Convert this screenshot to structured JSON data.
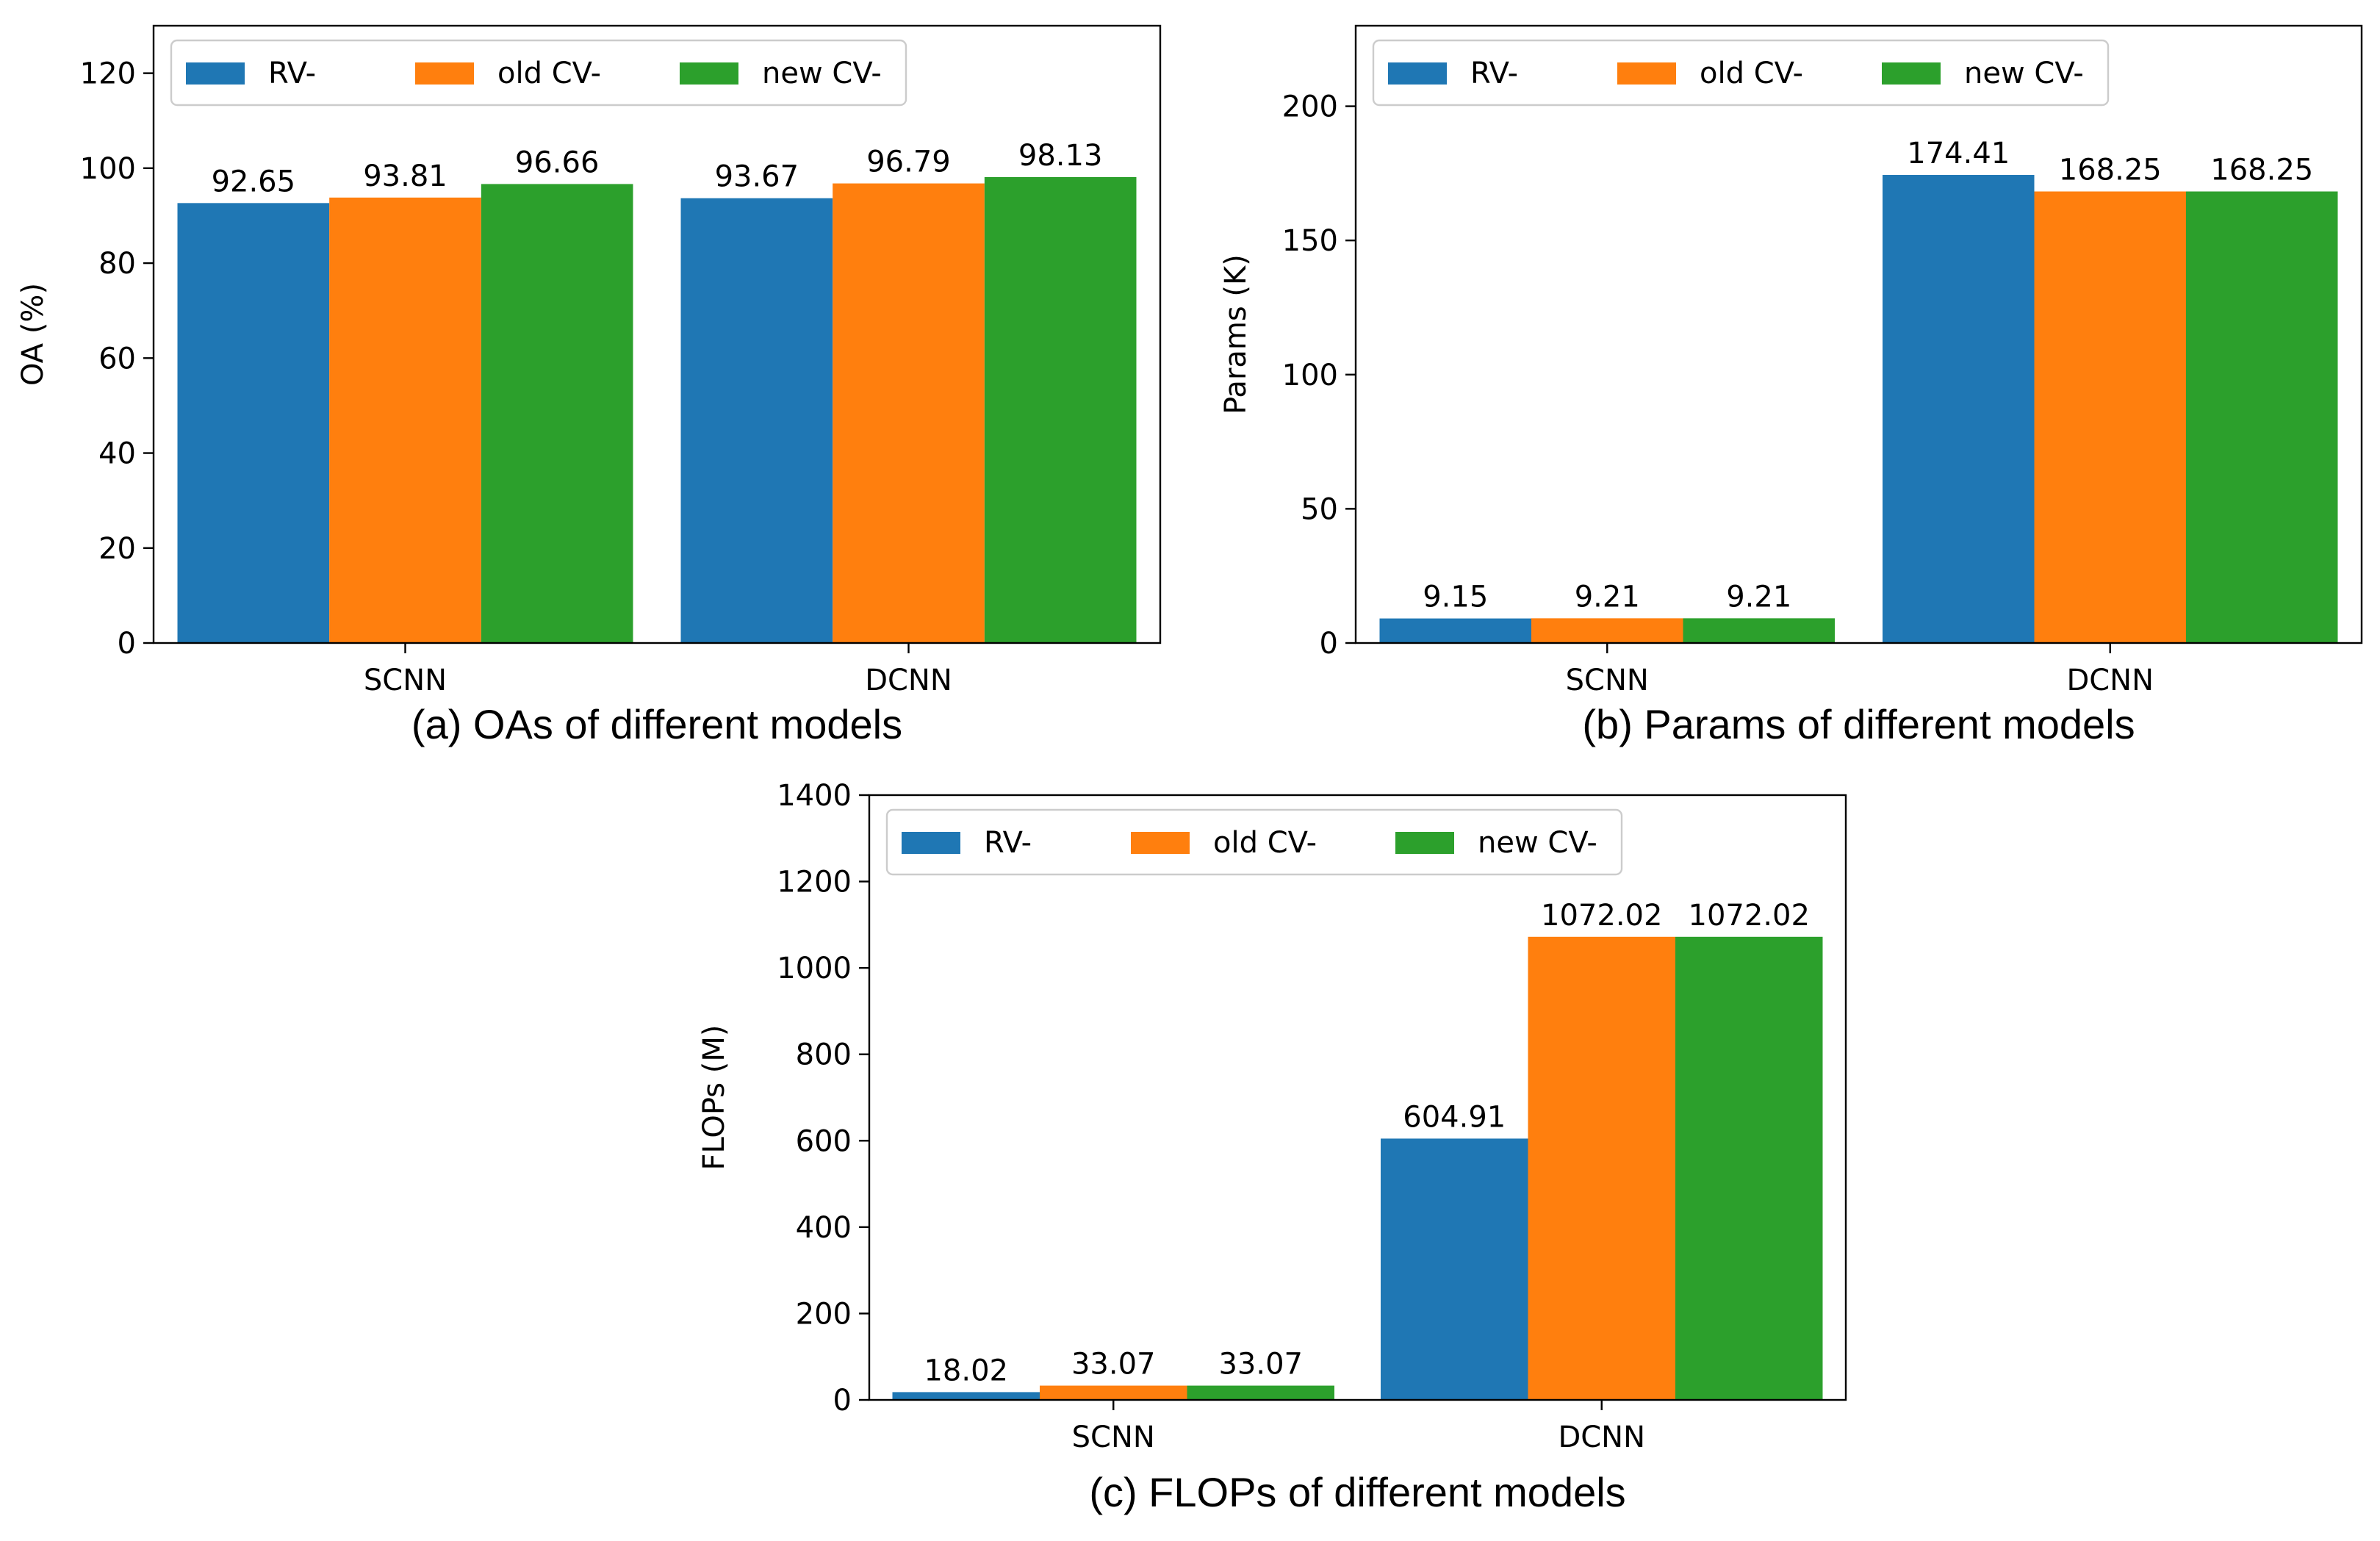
{
  "colors": {
    "rv": "#1f77b4",
    "old_cv": "#ff7f0e",
    "new_cv": "#2ca02c",
    "axis": "#000000",
    "legend_border": "#cccccc"
  },
  "chart_data": [
    {
      "type": "bar",
      "title": "(a) OAs of different models",
      "xlabel": "",
      "ylabel": "OA (%)",
      "categories": [
        "SCNN",
        "DCNN"
      ],
      "ylim": [
        0,
        130
      ],
      "yticks": [
        0,
        20,
        40,
        60,
        80,
        100,
        120
      ],
      "legend_position": "top-left",
      "series": [
        {
          "name": "RV-",
          "values": [
            92.65,
            93.67
          ],
          "labels": [
            "92.65",
            "93.67"
          ],
          "color": "#1f77b4"
        },
        {
          "name": "old CV-",
          "values": [
            93.81,
            96.79
          ],
          "labels": [
            "93.81",
            "96.79"
          ],
          "color": "#ff7f0e"
        },
        {
          "name": "new CV-",
          "values": [
            96.66,
            98.13
          ],
          "labels": [
            "96.66",
            "98.13"
          ],
          "color": "#2ca02c"
        }
      ]
    },
    {
      "type": "bar",
      "title": "(b) Params of different models",
      "xlabel": "",
      "ylabel": "Params (K)",
      "categories": [
        "SCNN",
        "DCNN"
      ],
      "ylim": [
        0,
        230
      ],
      "yticks": [
        0,
        50,
        100,
        150,
        200
      ],
      "legend_position": "top-left",
      "series": [
        {
          "name": "RV-",
          "values": [
            9.15,
            174.41
          ],
          "labels": [
            "9.15",
            "174.41"
          ],
          "color": "#1f77b4"
        },
        {
          "name": "old CV-",
          "values": [
            9.21,
            168.25
          ],
          "labels": [
            "9.21",
            "168.25"
          ],
          "color": "#ff7f0e"
        },
        {
          "name": "new CV-",
          "values": [
            9.21,
            168.25
          ],
          "labels": [
            "9.21",
            "168.25"
          ],
          "color": "#2ca02c"
        }
      ]
    },
    {
      "type": "bar",
      "title": "(c) FLOPs of different models",
      "xlabel": "",
      "ylabel": "FLOPs (M)",
      "categories": [
        "SCNN",
        "DCNN"
      ],
      "ylim": [
        0,
        1400
      ],
      "yticks": [
        0,
        200,
        400,
        600,
        800,
        1000,
        1200,
        1400
      ],
      "legend_position": "top-left",
      "series": [
        {
          "name": "RV-",
          "values": [
            18.02,
            604.91
          ],
          "labels": [
            "18.02",
            "604.91"
          ],
          "color": "#1f77b4"
        },
        {
          "name": "old CV-",
          "values": [
            33.07,
            1072.02
          ],
          "labels": [
            "33.07",
            "1072.02"
          ],
          "color": "#ff7f0e"
        },
        {
          "name": "new CV-",
          "values": [
            33.07,
            1072.02
          ],
          "labels": [
            "33.07",
            "1072.02"
          ],
          "color": "#2ca02c"
        }
      ]
    }
  ]
}
